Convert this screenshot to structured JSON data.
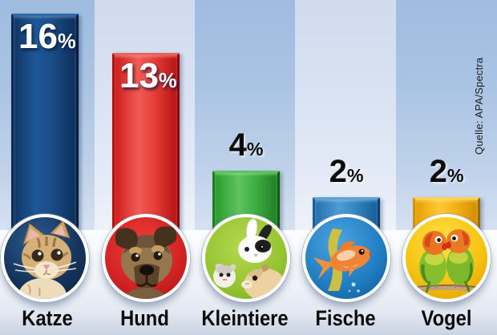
{
  "source": {
    "text": "Quelle: APA/Spectra"
  },
  "columns": [
    {
      "id": "katze",
      "label": "Katze",
      "value": 16,
      "value_digits": "16",
      "percent_sign": "%",
      "label_style": "light",
      "bar_color": "#16406f",
      "border_color": "#0a2448",
      "circle_bg": "#16355c",
      "icon": "kitten-photo-icon"
    },
    {
      "id": "hund",
      "label": "Hund",
      "value": 13,
      "value_digits": "13",
      "percent_sign": "%",
      "label_style": "light",
      "bar_color": "#e0302c",
      "border_color": "#a30b10",
      "circle_bg": "#d42424",
      "icon": "puppy-photo-icon"
    },
    {
      "id": "kleintiere",
      "label": "Kleintiere",
      "value": 4,
      "value_digits": "4",
      "percent_sign": "%",
      "label_style": "dark",
      "bar_color": "#3aa83e",
      "border_color": "#16701a",
      "circle_bg": "#94c430",
      "icon": "rabbit-hamster-guineapig-photo-icon"
    },
    {
      "id": "fische",
      "label": "Fische",
      "value": 2,
      "value_digits": "2",
      "percent_sign": "%",
      "label_style": "dark",
      "bar_color": "#3284c0",
      "border_color": "#0c4f88",
      "circle_bg": "#1f7cc0",
      "icon": "goldfish-photo-icon"
    },
    {
      "id": "vogel",
      "label": "Vogel",
      "value": 2,
      "value_digits": "2",
      "percent_sign": "%",
      "label_style": "dark",
      "bar_color": "#f3ae00",
      "border_color": "#bf8300",
      "circle_bg": "#f6c310",
      "icon": "lovebirds-photo-icon"
    }
  ],
  "chart_data": {
    "type": "bar",
    "categories": [
      "Katze",
      "Hund",
      "Kleintiere",
      "Fische",
      "Vogel"
    ],
    "values": [
      16,
      13,
      4,
      2,
      2
    ],
    "value_labels": [
      "16%",
      "13%",
      "4%",
      "2%",
      "2%"
    ],
    "unit": "percent",
    "title": "",
    "xlabel": "",
    "ylabel": "",
    "legend": false,
    "grid": false,
    "source": "Quelle: APA/Spectra",
    "bar_colors": [
      "#16406f",
      "#e0302c",
      "#3aa83e",
      "#3284c0",
      "#f3ae00"
    ],
    "background_stripe_colors": [
      "#a9c3e3",
      "#d7e1f1"
    ]
  }
}
